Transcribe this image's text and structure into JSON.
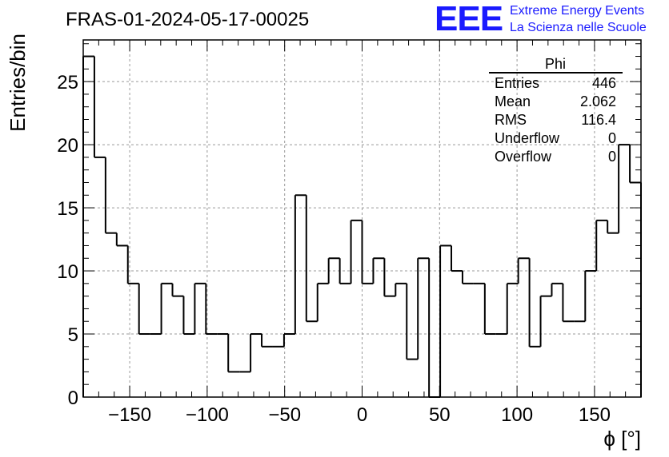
{
  "chart_data": {
    "type": "bar",
    "title": "FRAS-01-2024-05-17-00025",
    "xlabel": "ϕ [°]",
    "ylabel": "Entries/bin",
    "xlim": [
      -180,
      180
    ],
    "ylim": [
      0,
      28.3
    ],
    "grid": true,
    "x_ticks": [
      -150,
      -100,
      -50,
      0,
      50,
      100,
      150
    ],
    "x_tick_labels": [
      "−150",
      "−100",
      "−50",
      "0",
      "50",
      "100",
      "150"
    ],
    "y_ticks": [
      0,
      5,
      10,
      15,
      20,
      25
    ],
    "y_tick_labels": [
      "0",
      "5",
      "10",
      "15",
      "20",
      "25"
    ],
    "bin_edges_start": -180,
    "bin_width": 7.2,
    "values": [
      27,
      19,
      13,
      12,
      9,
      5,
      5,
      9,
      8,
      5,
      9,
      5,
      5,
      2,
      2,
      5,
      4,
      4,
      5,
      16,
      6,
      9,
      11,
      9,
      14,
      9,
      11,
      8,
      9,
      3,
      11,
      0,
      12,
      10,
      9,
      9,
      5,
      5,
      9,
      11,
      4,
      8,
      9,
      6,
      6,
      10,
      14,
      13,
      20,
      17
    ],
    "stats_box": {
      "title": "Phi",
      "rows": [
        {
          "label": "Entries",
          "value": "446"
        },
        {
          "label": "Mean",
          "value": "2.062"
        },
        {
          "label": "RMS",
          "value": "116.4"
        },
        {
          "label": "Underflow",
          "value": "0"
        },
        {
          "label": "Overflow",
          "value": "0"
        }
      ]
    }
  },
  "logo": {
    "mark": "EEE",
    "line1": "Extreme Energy Events",
    "line2": "La Scienza nelle Scuole",
    "color": "#1a1aff"
  },
  "colors": {
    "line": "#000000",
    "grid": "#999999"
  }
}
